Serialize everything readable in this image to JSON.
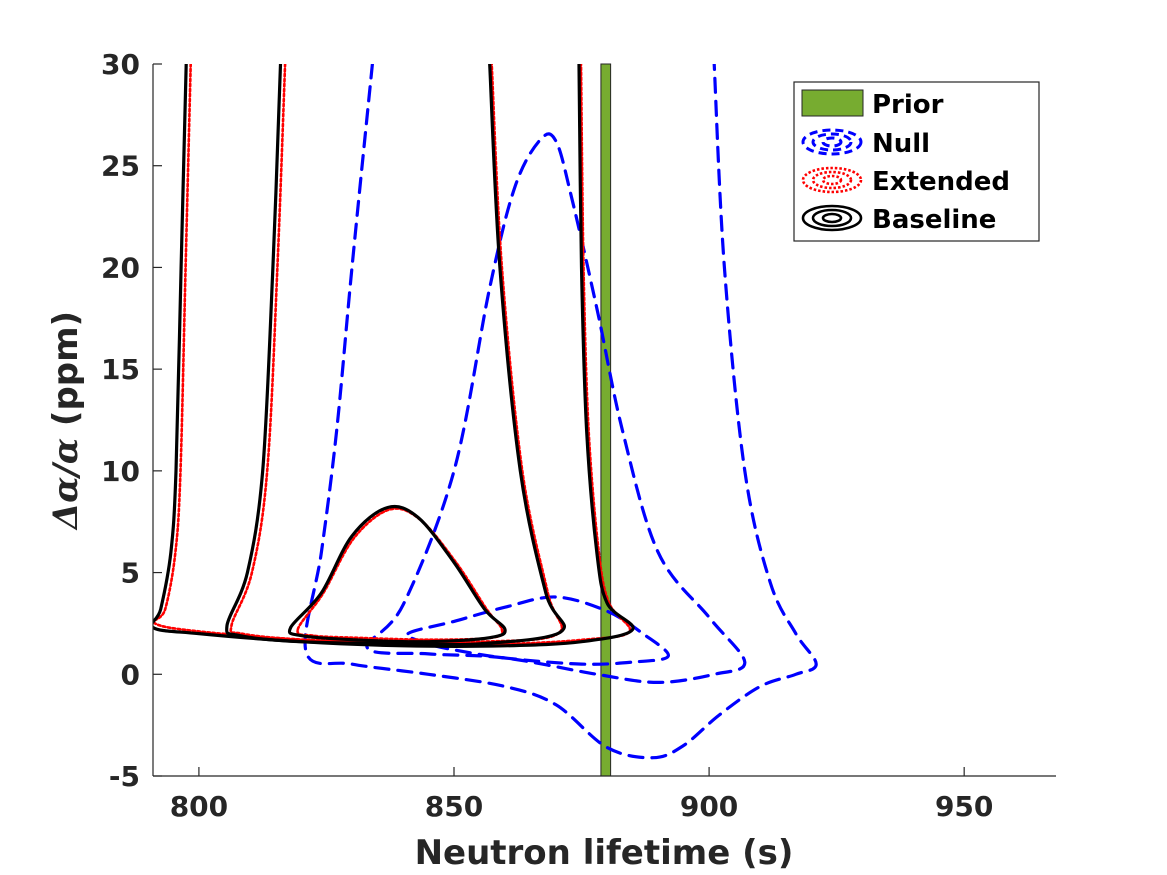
{
  "colors": {
    "prior_fill": "#77AC30",
    "null": "#0000FF",
    "extended": "#FF0000",
    "baseline": "#000000",
    "axis": "#262626"
  },
  "chart_data": {
    "type": "contour",
    "title": "",
    "xlabel": "Neutron lifetime (s)",
    "ylabel_math": "Δα/α",
    "ylabel_unit": " (ppm)",
    "xlim": [
      791,
      968
    ],
    "ylim": [
      -5,
      30
    ],
    "xticks": [
      800,
      850,
      900,
      950
    ],
    "yticks": [
      -5,
      0,
      5,
      10,
      15,
      20,
      25,
      30
    ],
    "xtick_labels": [
      "800",
      "850",
      "900",
      "950"
    ],
    "ytick_labels": [
      "-5",
      "0",
      "5",
      "10",
      "15",
      "20",
      "25",
      "30"
    ],
    "legend": {
      "position": "top-right",
      "entries": [
        "Prior",
        "Null",
        "Extended",
        "Baseline"
      ]
    },
    "prior_band": {
      "name": "Prior",
      "xmin": 878.8,
      "xmax": 880.7
    },
    "series": [
      {
        "name": "Null",
        "style": "dashed",
        "color": "blue",
        "contours": [
          [
            [
              841,
              2.0
            ],
            [
              850,
              2.6
            ],
            [
              860,
              3.3
            ],
            [
              870,
              3.8
            ],
            [
              880,
              3.1
            ],
            [
              887,
              2.0
            ],
            [
              892,
              0.9
            ],
            [
              885,
              0.6
            ],
            [
              875,
              0.5
            ],
            [
              860,
              0.8
            ],
            [
              850,
              1.2
            ],
            [
              845,
              1.5
            ]
          ],
          [
            [
              833,
              1.3
            ],
            [
              840,
              3.4
            ],
            [
              850,
              10
            ],
            [
              857,
              19
            ],
            [
              862,
              24
            ],
            [
              867,
              26.3
            ],
            [
              870,
              26.2
            ],
            [
              873,
              23.5
            ],
            [
              878,
              18
            ],
            [
              883,
              12
            ],
            [
              890,
              6
            ],
            [
              900,
              2.8
            ],
            [
              907,
              0.6
            ],
            [
              901,
              0
            ],
            [
              890,
              -0.4
            ],
            [
              878,
              0
            ],
            [
              860,
              0.8
            ],
            [
              845,
              1.0
            ]
          ],
          [
            [
              834,
              30
            ],
            [
              830,
              20
            ],
            [
              827,
              12
            ],
            [
              824,
              6
            ],
            [
              821,
              1.1
            ],
            [
              830,
              0.5
            ],
            [
              845,
              0
            ],
            [
              860,
              -0.6
            ],
            [
              870,
              -1.5
            ],
            [
              880,
              -3.6
            ],
            [
              889,
              -4.1
            ],
            [
              895,
              -3.5
            ],
            [
              902,
              -2.0
            ],
            [
              910,
              -0.6
            ],
            [
              917,
              0.0
            ],
            [
              921,
              0.5
            ],
            [
              917,
              2.0
            ],
            [
              912,
              4.5
            ],
            [
              907,
              10
            ],
            [
              903,
              20
            ],
            [
              901,
              30
            ]
          ]
        ]
      },
      {
        "name": "Extended",
        "style": "dotted",
        "color": "red",
        "contours": [
          [
            [
              798,
              30
            ],
            [
              797,
              20
            ],
            [
              796,
              10
            ],
            [
              795,
              6
            ],
            [
              793,
              3.2
            ],
            [
              791,
              2.5
            ],
            [
              800,
              2.1
            ],
            [
              820,
              1.7
            ],
            [
              840,
              1.5
            ],
            [
              860,
              1.5
            ],
            [
              875,
              1.7
            ],
            [
              884,
              2.1
            ],
            [
              880,
              3.5
            ],
            [
              878,
              6
            ],
            [
              876,
              12
            ],
            [
              875,
              20
            ],
            [
              874.5,
              30
            ]
          ],
          [
            [
              816.5,
              30
            ],
            [
              815,
              20
            ],
            [
              813,
              10
            ],
            [
              810,
              5
            ],
            [
              806,
              2.4
            ],
            [
              808,
              2.0
            ],
            [
              820,
              1.7
            ],
            [
              840,
              1.6
            ],
            [
              855,
              1.6
            ],
            [
              870,
              2.0
            ],
            [
              868,
              4
            ],
            [
              863,
              10
            ],
            [
              859,
              20
            ],
            [
              857,
              30
            ]
          ],
          [
            [
              819,
              2.2
            ],
            [
              824,
              4
            ],
            [
              830,
              6.7
            ],
            [
              837,
              8.1
            ],
            [
              843,
              7.6
            ],
            [
              850,
              5.5
            ],
            [
              856,
              3.2
            ],
            [
              859,
              2.2
            ],
            [
              857,
              1.8
            ],
            [
              845,
              1.7
            ],
            [
              830,
              1.8
            ],
            [
              822,
              1.9
            ]
          ]
        ]
      },
      {
        "name": "Baseline",
        "style": "solid",
        "color": "black",
        "contours": [
          [
            [
              797.5,
              30
            ],
            [
              796.5,
              20
            ],
            [
              795.5,
              10
            ],
            [
              794.5,
              6
            ],
            [
              792.5,
              3.2
            ],
            [
              791,
              2.3
            ],
            [
              800,
              2.0
            ],
            [
              820,
              1.6
            ],
            [
              840,
              1.4
            ],
            [
              860,
              1.4
            ],
            [
              875,
              1.6
            ],
            [
              885,
              2.2
            ],
            [
              880,
              3.5
            ],
            [
              878,
              6
            ],
            [
              876,
              12
            ],
            [
              875,
              20
            ],
            [
              874.5,
              30
            ]
          ],
          [
            [
              816,
              30
            ],
            [
              814.5,
              20
            ],
            [
              812.5,
              10
            ],
            [
              809.5,
              5
            ],
            [
              805.5,
              2.4
            ],
            [
              808,
              1.9
            ],
            [
              820,
              1.6
            ],
            [
              840,
              1.5
            ],
            [
              855,
              1.5
            ],
            [
              871,
              2.1
            ],
            [
              868,
              4
            ],
            [
              863,
              10
            ],
            [
              859,
              20
            ],
            [
              857,
              30
            ]
          ],
          [
            [
              818,
              2.3
            ],
            [
              824,
              4
            ],
            [
              830,
              6.8
            ],
            [
              837,
              8.2
            ],
            [
              843,
              7.7
            ],
            [
              850,
              5.5
            ],
            [
              856,
              3.2
            ],
            [
              860,
              2.2
            ],
            [
              857,
              1.8
            ],
            [
              845,
              1.6
            ],
            [
              830,
              1.7
            ],
            [
              820,
              1.9
            ]
          ]
        ]
      }
    ]
  }
}
